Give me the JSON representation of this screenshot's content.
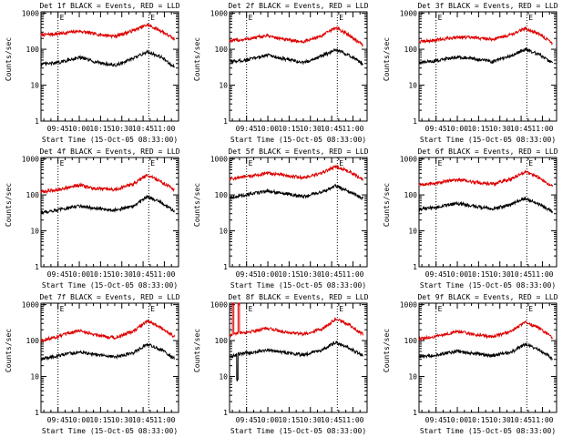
{
  "chart_data": [
    {
      "type": "line",
      "title": "Det 1f BLACK = Events, RED = LLD",
      "ylabel": "Counts/sec",
      "xlabel": "Start Time (15-Oct-05 08:33:00)",
      "x_ticks": [
        "09:45",
        "10:00",
        "10:15",
        "10:30",
        "10:45",
        "11:00"
      ],
      "y_ticks": [
        "1",
        "10",
        "100",
        "1000"
      ],
      "yscale": "log",
      "ylim": [
        1,
        1100
      ],
      "xlim": [
        "09:33",
        "11:10"
      ],
      "markers": [
        {
          "time": "09:45",
          "label": "E"
        },
        {
          "time": "10:49",
          "label": "E"
        }
      ],
      "series": [
        {
          "color": "#dd0000",
          "time": [
            "09:33",
            "09:45",
            "10:00",
            "10:10",
            "10:25",
            "10:38",
            "10:48",
            "10:58",
            "11:07"
          ],
          "values": [
            250,
            270,
            320,
            270,
            230,
            330,
            480,
            320,
            190
          ]
        },
        {
          "color": "#000000",
          "time": [
            "09:33",
            "09:45",
            "10:00",
            "10:10",
            "10:25",
            "10:38",
            "10:48",
            "10:58",
            "11:07"
          ],
          "values": [
            38,
            42,
            60,
            46,
            35,
            55,
            85,
            60,
            32
          ]
        }
      ]
    },
    {
      "type": "line",
      "title": "Det 2f BLACK = Events, RED = LLD",
      "ylabel": "Counts/sec",
      "xlabel": "Start Time (15-Oct-05 08:33:00)",
      "x_ticks": [
        "09:45",
        "10:00",
        "10:15",
        "10:30",
        "10:45",
        "11:00"
      ],
      "y_ticks": [
        "1",
        "10",
        "100",
        "1000"
      ],
      "yscale": "log",
      "ylim": [
        1,
        1100
      ],
      "xlim": [
        "09:33",
        "11:10"
      ],
      "markers": [
        {
          "time": "09:45",
          "label": "E"
        },
        {
          "time": "10:49",
          "label": "E"
        }
      ],
      "series": [
        {
          "color": "#dd0000",
          "time": [
            "09:33",
            "09:45",
            "10:00",
            "10:10",
            "10:25",
            "10:38",
            "10:48",
            "10:58",
            "11:07"
          ],
          "values": [
            170,
            190,
            240,
            190,
            160,
            240,
            400,
            240,
            130
          ]
        },
        {
          "color": "#000000",
          "time": [
            "09:33",
            "09:45",
            "10:00",
            "10:10",
            "10:25",
            "10:38",
            "10:48",
            "10:58",
            "11:07"
          ],
          "values": [
            45,
            50,
            70,
            55,
            42,
            65,
            95,
            65,
            40
          ]
        }
      ]
    },
    {
      "type": "line",
      "title": "Det 3f BLACK = Events, RED = LLD",
      "ylabel": "Counts/sec",
      "xlabel": "Start Time (15-Oct-05 08:33:00)",
      "x_ticks": [
        "09:45",
        "10:00",
        "10:15",
        "10:30",
        "10:45",
        "11:00"
      ],
      "y_ticks": [
        "1",
        "10",
        "100",
        "1000"
      ],
      "yscale": "log",
      "ylim": [
        1,
        1100
      ],
      "xlim": [
        "09:33",
        "11:10"
      ],
      "markers": [
        {
          "time": "09:45",
          "label": "E"
        },
        {
          "time": "10:49",
          "label": "E"
        }
      ],
      "series": [
        {
          "color": "#dd0000",
          "time": [
            "09:33",
            "09:45",
            "10:00",
            "10:10",
            "10:25",
            "10:38",
            "10:48",
            "10:58",
            "11:07"
          ],
          "values": [
            160,
            180,
            220,
            210,
            190,
            260,
            380,
            260,
            150
          ]
        },
        {
          "color": "#000000",
          "time": [
            "09:33",
            "09:45",
            "10:00",
            "10:10",
            "10:25",
            "10:38",
            "10:48",
            "10:58",
            "11:07"
          ],
          "values": [
            42,
            48,
            62,
            55,
            45,
            65,
            100,
            70,
            42
          ]
        }
      ]
    },
    {
      "type": "line",
      "title": "Det 4f BLACK = Events, RED = LLD",
      "ylabel": "Counts/sec",
      "xlabel": "Start Time (15-Oct-05 08:33:00)",
      "x_ticks": [
        "09:45",
        "10:00",
        "10:15",
        "10:30",
        "10:45",
        "11:00"
      ],
      "y_ticks": [
        "1",
        "10",
        "100",
        "1000"
      ],
      "yscale": "log",
      "ylim": [
        1,
        1100
      ],
      "xlim": [
        "09:33",
        "11:10"
      ],
      "markers": [
        {
          "time": "09:45",
          "label": "E"
        },
        {
          "time": "10:49",
          "label": "E"
        }
      ],
      "series": [
        {
          "color": "#dd0000",
          "time": [
            "09:33",
            "09:45",
            "10:00",
            "10:10",
            "10:25",
            "10:38",
            "10:48",
            "10:58",
            "11:07"
          ],
          "values": [
            120,
            140,
            190,
            150,
            140,
            200,
            360,
            230,
            140
          ]
        },
        {
          "color": "#000000",
          "time": [
            "09:33",
            "09:45",
            "10:00",
            "10:10",
            "10:25",
            "10:38",
            "10:48",
            "10:58",
            "11:07"
          ],
          "values": [
            32,
            38,
            50,
            42,
            38,
            48,
            90,
            60,
            35
          ]
        }
      ]
    },
    {
      "type": "line",
      "title": "Det 5f BLACK = Events, RED = LLD",
      "ylabel": "Counts/sec",
      "xlabel": "Start Time (15-Oct-05 08:33:00)",
      "x_ticks": [
        "09:45",
        "10:00",
        "10:15",
        "10:30",
        "10:45",
        "11:00"
      ],
      "y_ticks": [
        "1",
        "10",
        "100",
        "1000"
      ],
      "yscale": "log",
      "ylim": [
        1,
        1100
      ],
      "xlim": [
        "09:33",
        "11:10"
      ],
      "markers": [
        {
          "time": "09:45",
          "label": "E"
        },
        {
          "time": "10:49",
          "label": "E"
        }
      ],
      "series": [
        {
          "color": "#dd0000",
          "time": [
            "09:33",
            "09:45",
            "10:00",
            "10:10",
            "10:25",
            "10:38",
            "10:48",
            "10:58",
            "11:07"
          ],
          "values": [
            280,
            320,
            400,
            360,
            300,
            400,
            620,
            430,
            270
          ]
        },
        {
          "color": "#000000",
          "time": [
            "09:33",
            "09:45",
            "10:00",
            "10:10",
            "10:25",
            "10:38",
            "10:48",
            "10:58",
            "11:07"
          ],
          "values": [
            85,
            100,
            130,
            110,
            90,
            120,
            180,
            120,
            80
          ]
        }
      ]
    },
    {
      "type": "line",
      "title": "Det 6f BLACK = Events, RED = LLD",
      "ylabel": "Counts/sec",
      "xlabel": "Start Time (15-Oct-05 08:33:00)",
      "x_ticks": [
        "09:45",
        "10:00",
        "10:15",
        "10:30",
        "10:45",
        "11:00"
      ],
      "y_ticks": [
        "1",
        "10",
        "100",
        "1000"
      ],
      "yscale": "log",
      "ylim": [
        1,
        1100
      ],
      "xlim": [
        "09:33",
        "11:10"
      ],
      "markers": [
        {
          "time": "09:45",
          "label": "E"
        },
        {
          "time": "10:49",
          "label": "E"
        }
      ],
      "series": [
        {
          "color": "#dd0000",
          "time": [
            "09:33",
            "09:45",
            "10:00",
            "10:10",
            "10:25",
            "10:38",
            "10:48",
            "10:58",
            "11:07"
          ],
          "values": [
            190,
            210,
            270,
            230,
            200,
            280,
            440,
            300,
            170
          ]
        },
        {
          "color": "#000000",
          "time": [
            "09:33",
            "09:45",
            "10:00",
            "10:10",
            "10:25",
            "10:38",
            "10:48",
            "10:58",
            "11:07"
          ],
          "values": [
            40,
            45,
            58,
            50,
            40,
            55,
            80,
            55,
            35
          ]
        }
      ]
    },
    {
      "type": "line",
      "title": "Det 7f BLACK = Events, RED = LLD",
      "ylabel": "Counts/sec",
      "xlabel": "Start Time (15-Oct-05 08:33:00)",
      "x_ticks": [
        "09:45",
        "10:00",
        "10:15",
        "10:30",
        "10:45",
        "11:00"
      ],
      "y_ticks": [
        "1",
        "10",
        "100",
        "1000"
      ],
      "yscale": "log",
      "ylim": [
        1,
        1100
      ],
      "xlim": [
        "09:33",
        "11:10"
      ],
      "markers": [
        {
          "time": "09:45",
          "label": "E"
        },
        {
          "time": "10:49",
          "label": "E"
        }
      ],
      "series": [
        {
          "color": "#dd0000",
          "time": [
            "09:33",
            "09:45",
            "10:00",
            "10:10",
            "10:25",
            "10:38",
            "10:48",
            "10:58",
            "11:07"
          ],
          "values": [
            100,
            130,
            190,
            150,
            120,
            180,
            350,
            220,
            130
          ]
        },
        {
          "color": "#000000",
          "time": [
            "09:33",
            "09:45",
            "10:00",
            "10:10",
            "10:25",
            "10:38",
            "10:48",
            "10:58",
            "11:07"
          ],
          "values": [
            30,
            38,
            48,
            42,
            35,
            45,
            80,
            55,
            32
          ]
        }
      ]
    },
    {
      "type": "line",
      "title": "Det 8f BLACK = Events, RED = LLD",
      "ylabel": "Counts/sec",
      "xlabel": "Start Time (15-Oct-05 08:33:00)",
      "x_ticks": [
        "09:45",
        "10:00",
        "10:15",
        "10:30",
        "10:45",
        "11:00"
      ],
      "y_ticks": [
        "1",
        "10",
        "100",
        "1000"
      ],
      "yscale": "log",
      "ylim": [
        1,
        1100
      ],
      "xlim": [
        "09:33",
        "11:10"
      ],
      "markers": [
        {
          "time": "09:45",
          "label": "E"
        },
        {
          "time": "10:49",
          "label": "E"
        }
      ],
      "series": [
        {
          "color": "#dd0000",
          "time": [
            "09:33",
            "09:35",
            "09:35",
            "09:36",
            "09:36",
            "09:39",
            "09:39",
            "09:40",
            "09:40",
            "09:45",
            "10:00",
            "10:10",
            "10:25",
            "10:38",
            "10:48",
            "10:58",
            "11:07"
          ],
          "values": [
            140,
            150,
            1100,
            1100,
            150,
            160,
            1100,
            1100,
            170,
            170,
            220,
            180,
            150,
            210,
            400,
            260,
            150
          ]
        },
        {
          "color": "#000000",
          "time": [
            "09:33",
            "09:38",
            "09:38",
            "09:39",
            "09:39",
            "09:45",
            "10:00",
            "10:10",
            "10:25",
            "10:38",
            "10:48",
            "10:58",
            "11:07"
          ],
          "values": [
            35,
            40,
            8,
            8,
            42,
            45,
            55,
            48,
            40,
            55,
            90,
            60,
            38
          ]
        }
      ]
    },
    {
      "type": "line",
      "title": "Det 9f BLACK = Events, RED = LLD",
      "ylabel": "Counts/sec",
      "xlabel": "Start Time (15-Oct-05 08:33:00)",
      "x_ticks": [
        "09:45",
        "10:00",
        "10:15",
        "10:30",
        "10:45",
        "11:00"
      ],
      "y_ticks": [
        "1",
        "10",
        "100",
        "1000"
      ],
      "yscale": "log",
      "ylim": [
        1,
        1100
      ],
      "xlim": [
        "09:33",
        "11:10"
      ],
      "markers": [
        {
          "time": "09:45",
          "label": "E"
        },
        {
          "time": "10:49",
          "label": "E"
        }
      ],
      "series": [
        {
          "color": "#dd0000",
          "time": [
            "09:33",
            "09:45",
            "10:00",
            "10:10",
            "10:25",
            "10:38",
            "10:48",
            "10:58",
            "11:07"
          ],
          "values": [
            110,
            130,
            180,
            150,
            130,
            180,
            320,
            220,
            120
          ]
        },
        {
          "color": "#000000",
          "time": [
            "09:33",
            "09:45",
            "10:00",
            "10:10",
            "10:25",
            "10:38",
            "10:48",
            "10:58",
            "11:07"
          ],
          "values": [
            35,
            40,
            50,
            44,
            38,
            48,
            80,
            55,
            32
          ]
        }
      ]
    }
  ]
}
